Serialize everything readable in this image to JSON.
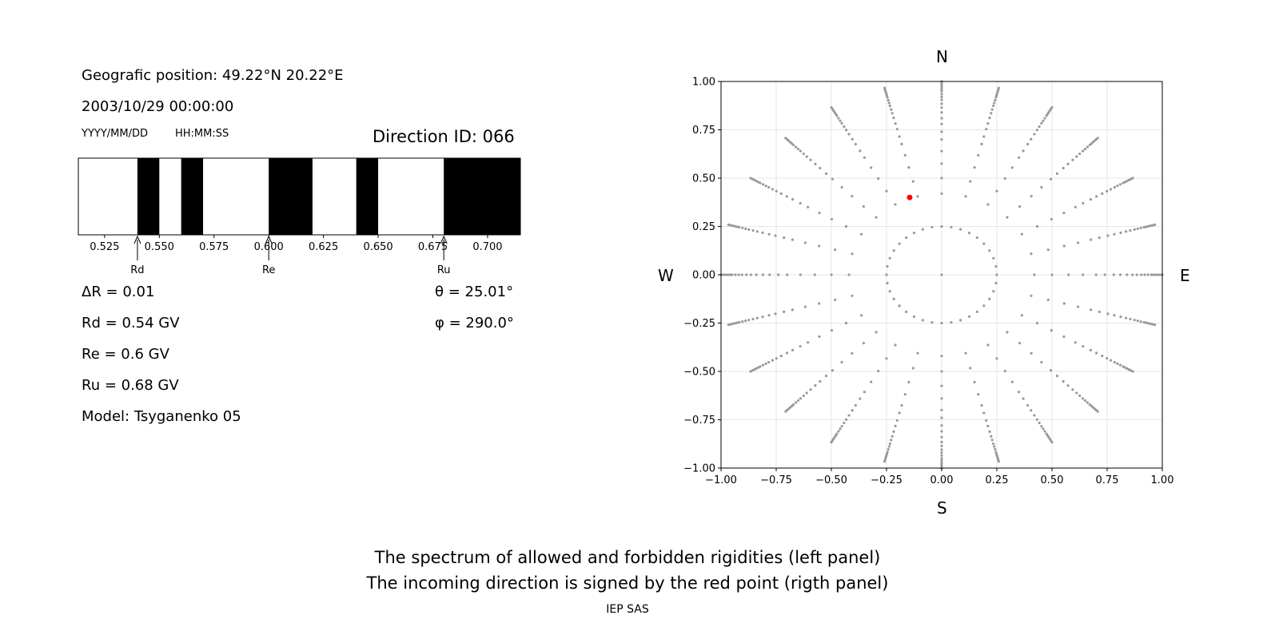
{
  "info": {
    "position": "Geografic position: 49.22°N 20.22°E",
    "datetime": "2003/10/29 00:00:00",
    "date_format": "YYYY/MM/DD",
    "time_format": "HH:MM:SS",
    "direction_id": "Direction ID: 066"
  },
  "params": {
    "delta_r": "ΔR = 0.01",
    "theta": "θ = 25.01°",
    "rd": "Rd = 0.54 GV",
    "phi": "φ = 290.0°",
    "re": "Re = 0.6 GV",
    "ru": "Ru = 0.68 GV",
    "model": "Model: Tsyganenko 05"
  },
  "compass": {
    "north": "N",
    "south": "S",
    "west": "W",
    "east": "E"
  },
  "footer": {
    "line1": "The spectrum of allowed and forbidden rigidities (left panel)",
    "line2": "The incoming direction is signed by the red point (rigth panel)",
    "credit": "IEP SAS"
  },
  "colors": {
    "forbidden": "#000000",
    "allowed": "#ffffff",
    "trajectory_points": "#999999",
    "incoming_direction": "#ff0000"
  },
  "chart_data": [
    {
      "type": "bar",
      "description_kind": "rigidity spectrum",
      "xlim": [
        0.513,
        0.715
      ],
      "xticks": [
        0.525,
        0.55,
        0.575,
        0.6,
        0.625,
        0.65,
        0.675,
        0.7
      ],
      "xtick_labels": [
        "0.525",
        "0.550",
        "0.575",
        "0.600",
        "0.625",
        "0.650",
        "0.675",
        "0.700"
      ],
      "forbidden_bands": [
        [
          0.54,
          0.55
        ],
        [
          0.56,
          0.57
        ],
        [
          0.6,
          0.62
        ],
        [
          0.64,
          0.65
        ],
        [
          0.68,
          0.715
        ]
      ],
      "markers": [
        {
          "label": "Rd",
          "value": 0.54
        },
        {
          "label": "Re",
          "value": 0.6
        },
        {
          "label": "Ru",
          "value": 0.68
        }
      ]
    },
    {
      "type": "scatter",
      "xlim": [
        -1.0,
        1.0
      ],
      "ylim": [
        -1.0,
        1.0
      ],
      "xticks": [
        -1.0,
        -0.75,
        -0.5,
        -0.25,
        0.0,
        0.25,
        0.5,
        0.75,
        1.0
      ],
      "xtick_labels": [
        "−1.00",
        "−0.75",
        "−0.50",
        "−0.25",
        "0.00",
        "0.25",
        "0.50",
        "0.75",
        "1.00"
      ],
      "yticks": [
        1.0,
        0.75,
        0.5,
        0.25,
        0.0,
        -0.25,
        -0.5,
        -0.75,
        -1.0
      ],
      "ytick_labels": [
        "1.00",
        "0.75",
        "0.50",
        "0.25",
        "0.00",
        "−0.25",
        "−0.50",
        "−0.75",
        "−1.00"
      ],
      "grid": true,
      "grid_points": {
        "center": [
          0.0,
          0.0
        ],
        "radii": [
          0.25,
          0.42,
          0.5,
          0.575,
          0.64,
          0.7,
          0.74,
          0.78,
          0.81,
          0.84,
          0.865,
          0.885,
          0.905,
          0.92,
          0.935,
          0.95,
          0.96,
          0.97,
          0.98,
          0.99,
          1.0
        ],
        "ray_step_deg": 15
      },
      "highlight_point": {
        "x": -0.145,
        "y": 0.4
      }
    }
  ]
}
